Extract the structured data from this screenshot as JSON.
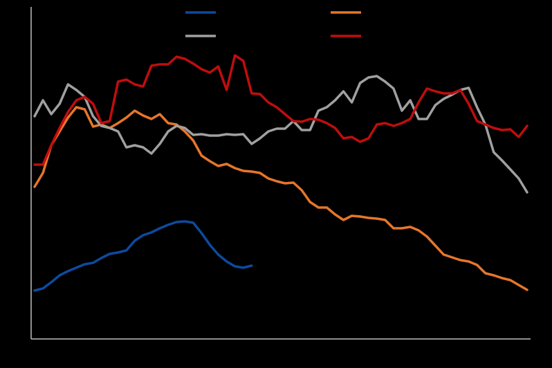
{
  "chart_data": {
    "type": "line",
    "categories": [
      null,
      null,
      null,
      null,
      null,
      null,
      null,
      null,
      null,
      null,
      null,
      null,
      null,
      null,
      null,
      null,
      null,
      null,
      null,
      null,
      null,
      null,
      null,
      null,
      null,
      null,
      null,
      null,
      null,
      null,
      null,
      null,
      null,
      null,
      null,
      null,
      null,
      null,
      null,
      null,
      null,
      null,
      null,
      null,
      null,
      null,
      null,
      null,
      null,
      null,
      null,
      null,
      null,
      null,
      null,
      null,
      null,
      null,
      null,
      null
    ],
    "ylim": [
      0,
      480
    ],
    "legend": "top",
    "series": [
      {
        "color": "#0d4a9e",
        "values": [
          70,
          73,
          82,
          92,
          98,
          103,
          108,
          110,
          117,
          123,
          125,
          128,
          142,
          150,
          154,
          160,
          165,
          169,
          170,
          168,
          153,
          136,
          122,
          112,
          105,
          103,
          106,
          null,
          null,
          null,
          null,
          null,
          null,
          null,
          null,
          null,
          null,
          null,
          null,
          null,
          null,
          null,
          null,
          null,
          null,
          null,
          null,
          null,
          null,
          null,
          null,
          null,
          null,
          null,
          null,
          null,
          null,
          null,
          null,
          null
        ]
      },
      {
        "color": "#e6762b",
        "values": [
          220,
          240,
          280,
          300,
          320,
          335,
          332,
          307,
          310,
          305,
          312,
          320,
          330,
          323,
          318,
          325,
          312,
          310,
          300,
          287,
          265,
          257,
          250,
          253,
          247,
          243,
          242,
          240,
          232,
          228,
          225,
          226,
          215,
          198,
          190,
          190,
          180,
          172,
          178,
          177,
          175,
          174,
          172,
          160,
          160,
          162,
          157,
          148,
          135,
          122,
          118,
          114,
          112,
          107,
          95,
          92,
          88,
          85,
          78,
          71
        ]
      },
      {
        "color": "#a0a0a0",
        "values": [
          322,
          345,
          325,
          340,
          368,
          360,
          350,
          322,
          308,
          305,
          300,
          277,
          280,
          277,
          268,
          282,
          300,
          308,
          305,
          295,
          296,
          294,
          294,
          296,
          295,
          296,
          282,
          290,
          300,
          304,
          304,
          315,
          302,
          302,
          330,
          335,
          345,
          358,
          342,
          370,
          378,
          380,
          372,
          362,
          330,
          345,
          318,
          318,
          338,
          347,
          353,
          360,
          363,
          335,
          310,
          270,
          258,
          245,
          232,
          212
        ]
      },
      {
        "color": "#c00d0d",
        "values": [
          252,
          252,
          280,
          305,
          328,
          345,
          350,
          340,
          312,
          315,
          372,
          375,
          368,
          365,
          395,
          397,
          397,
          408,
          405,
          398,
          390,
          385,
          394,
          360,
          410,
          402,
          355,
          354,
          342,
          335,
          325,
          315,
          314,
          318,
          317,
          312,
          305,
          290,
          292,
          285,
          290,
          310,
          312,
          308,
          312,
          318,
          342,
          362,
          358,
          355,
          355,
          360,
          340,
          315,
          310,
          305,
          302,
          303,
          292,
          308
        ]
      }
    ]
  }
}
